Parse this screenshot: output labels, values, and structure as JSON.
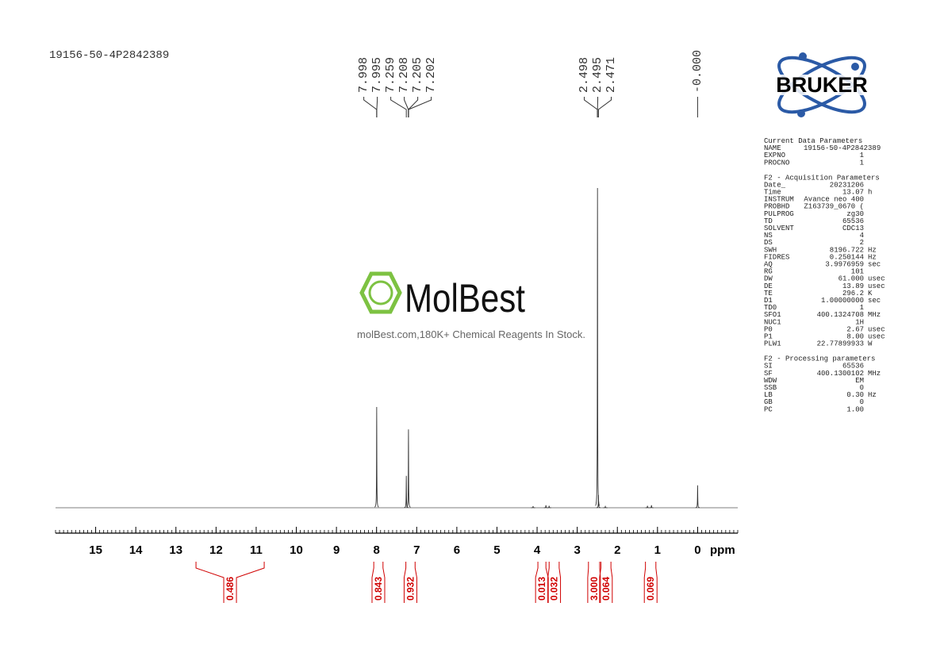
{
  "sample_id": "19156-50-4P2842389",
  "watermark": {
    "brand": "MolBest",
    "tagline": "molBest.com,180K+ Chemical Reagents In Stock."
  },
  "logo": "BRUKER",
  "parameters": [
    {
      "title": "Current Data Parameters",
      "rows": [
        [
          "NAME",
          "19156-50-4P2842389"
        ],
        [
          "EXPNO",
          "1"
        ],
        [
          "PROCNO",
          "1"
        ]
      ]
    },
    {
      "title": "F2 - Acquisition Parameters",
      "rows": [
        [
          "Date_",
          "20231206"
        ],
        [
          "Time",
          "13.07",
          "h"
        ],
        [
          "INSTRUM",
          "Avance neo 400"
        ],
        [
          "PROBHD",
          "Z163739_0670 ("
        ],
        [
          "PULPROG",
          "zg30"
        ],
        [
          "TD",
          "65536"
        ],
        [
          "SOLVENT",
          "CDC13"
        ],
        [
          "NS",
          "4"
        ],
        [
          "DS",
          "2"
        ],
        [
          "SWH",
          "8196.722",
          "Hz"
        ],
        [
          "FIDRES",
          "0.250144",
          "Hz"
        ],
        [
          "AQ",
          "3.9976959",
          "sec"
        ],
        [
          "RG",
          "101"
        ],
        [
          "DW",
          "61.000",
          "usec"
        ],
        [
          "DE",
          "13.89",
          "usec"
        ],
        [
          "TE",
          "296.2",
          "K"
        ],
        [
          "D1",
          "1.00000000",
          "sec"
        ],
        [
          "TD0",
          "1"
        ],
        [
          "SFO1",
          "400.1324708",
          "MHz"
        ],
        [
          "NUC1",
          "1H"
        ],
        [
          "P0",
          "2.67",
          "usec"
        ],
        [
          "P1",
          "8.00",
          "usec"
        ],
        [
          "PLW1",
          "22.77899933",
          "W"
        ]
      ]
    },
    {
      "title": "F2 - Processing parameters",
      "rows": [
        [
          "SI",
          "65536"
        ],
        [
          "SF",
          "400.1300102",
          "MHz"
        ],
        [
          "WDW",
          "EM"
        ],
        [
          "SSB",
          "0"
        ],
        [
          "LB",
          "0.30",
          "Hz"
        ],
        [
          "GB",
          "0"
        ],
        [
          "PC",
          "1.00"
        ]
      ]
    }
  ],
  "chart_data": {
    "type": "nmr",
    "xlim": [
      16,
      -1
    ],
    "xticks": [
      15,
      14,
      13,
      12,
      11,
      10,
      9,
      8,
      7,
      6,
      5,
      4,
      3,
      2,
      1,
      0
    ],
    "xminor": 0.1,
    "xlabel": "ppm",
    "peaks": [
      {
        "x": 7.997,
        "height": 31.5
      },
      {
        "x": 7.259,
        "height": 10
      },
      {
        "x": 7.205,
        "height": 24.5
      },
      {
        "x": 2.495,
        "height": 100
      },
      {
        "x": 2.471,
        "height": 4
      },
      {
        "x": 0,
        "height": 7
      },
      {
        "x": 4.1,
        "height": 0.5
      },
      {
        "x": 3.78,
        "height": 0.8
      },
      {
        "x": 3.7,
        "height": 0.6
      },
      {
        "x": 2.3,
        "height": 0.4
      },
      {
        "x": 1.25,
        "height": 0.6
      },
      {
        "x": 1.15,
        "height": 0.8
      }
    ],
    "peak_labels": [
      [
        7.998,
        7.995,
        7.259,
        7.208,
        7.205,
        7.202
      ],
      [
        2.498,
        2.495,
        2.471
      ],
      [
        {
          "value": 0,
          "label": "-0.000"
        }
      ]
    ],
    "integrals": [
      {
        "from": 12.5,
        "to": 10.8,
        "value": 0.486
      },
      {
        "from": 8.07,
        "to": 7.84,
        "value": 0.843
      },
      {
        "from": 7.27,
        "to": 7.04,
        "value": 0.932
      },
      {
        "from": 3.98,
        "to": 3.78,
        "value": 0.013
      },
      {
        "from": 3.7,
        "to": 3.45,
        "value": 0.032
      },
      {
        "from": 2.72,
        "to": 2.44,
        "value": 3,
        "label": "3.000"
      },
      {
        "from": 2.41,
        "to": 2.16,
        "value": 0.064
      },
      {
        "from": 1.3,
        "to": 1.04,
        "value": 0.069
      }
    ]
  }
}
